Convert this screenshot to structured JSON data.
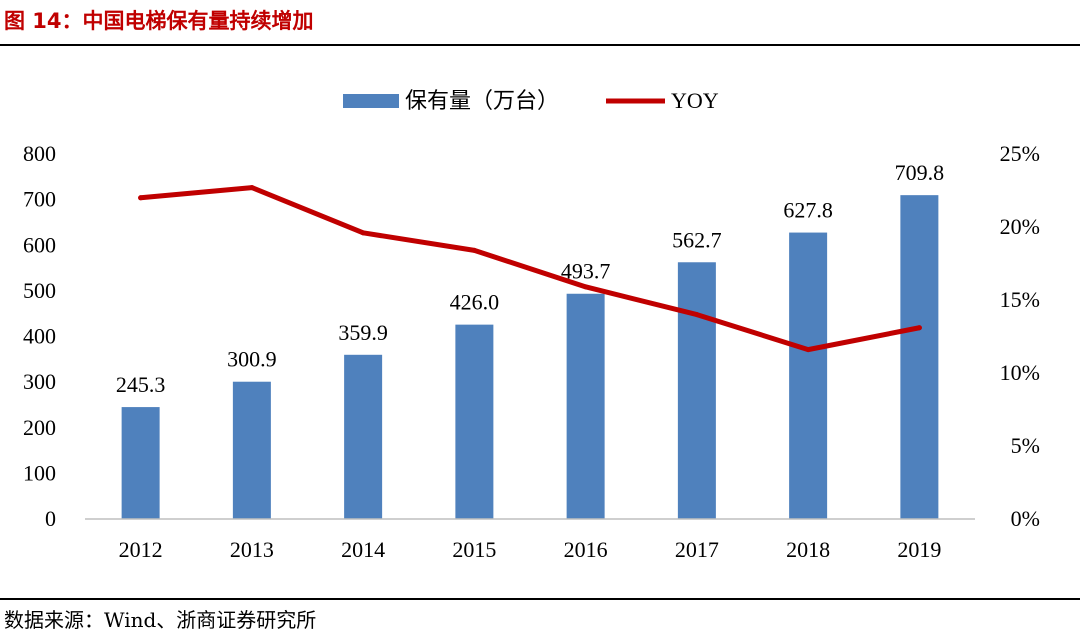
{
  "figure": {
    "title": "图 14：中国电梯保有量持续增加",
    "source": "数据来源：Wind、浙商证券研究所"
  },
  "colors": {
    "bar": "#4f81bd",
    "line": "#c00000",
    "axis": "#bfbfbf",
    "title": "#c00000"
  },
  "chart_data": {
    "type": "bar",
    "title": "",
    "categories": [
      "2012",
      "2013",
      "2014",
      "2015",
      "2016",
      "2017",
      "2018",
      "2019"
    ],
    "series": [
      {
        "name": "保有量（万台）",
        "type": "bar",
        "axis": "left",
        "values": [
          245.3,
          300.9,
          359.9,
          426.0,
          493.7,
          562.7,
          627.8,
          709.8
        ],
        "labels": [
          "245.3",
          "300.9",
          "359.9",
          "426.0",
          "493.7",
          "562.7",
          "627.8",
          "709.8"
        ]
      },
      {
        "name": "YOY",
        "type": "line",
        "axis": "right",
        "values": [
          0.22,
          0.227,
          0.196,
          0.184,
          0.159,
          0.14,
          0.116,
          0.131
        ]
      }
    ],
    "y_left": {
      "min": 0,
      "max": 800,
      "ticks": [
        "0",
        "100",
        "200",
        "300",
        "400",
        "500",
        "600",
        "700",
        "800"
      ]
    },
    "y_right": {
      "min": 0,
      "max": 0.25,
      "ticks": [
        "0%",
        "5%",
        "10%",
        "15%",
        "20%",
        "25%"
      ]
    },
    "legend": {
      "position": "top-center",
      "items": [
        "保有量（万台）",
        "YOY"
      ]
    },
    "grid": false
  }
}
